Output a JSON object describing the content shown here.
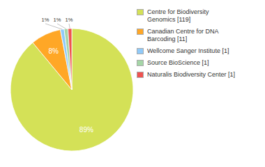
{
  "chart_data": {
    "type": "pie",
    "categories": [
      "Centre for Biodiversity\nGenomics [119]",
      "Canadian Centre for DNA\nBarcoding [11]",
      "Wellcome Sanger Institute [1]",
      "Source BioScience [1]",
      "Naturalis Biodiversity Center [1]"
    ],
    "values": [
      89,
      8,
      1,
      1,
      1
    ],
    "value_labels": [
      "89%",
      "8%",
      "1%",
      "1%",
      "1%"
    ],
    "colors": [
      "#d4e157",
      "#ffa726",
      "#90caf9",
      "#a5d6a7",
      "#ef5350"
    ],
    "data_labels": true,
    "legend": "right"
  }
}
